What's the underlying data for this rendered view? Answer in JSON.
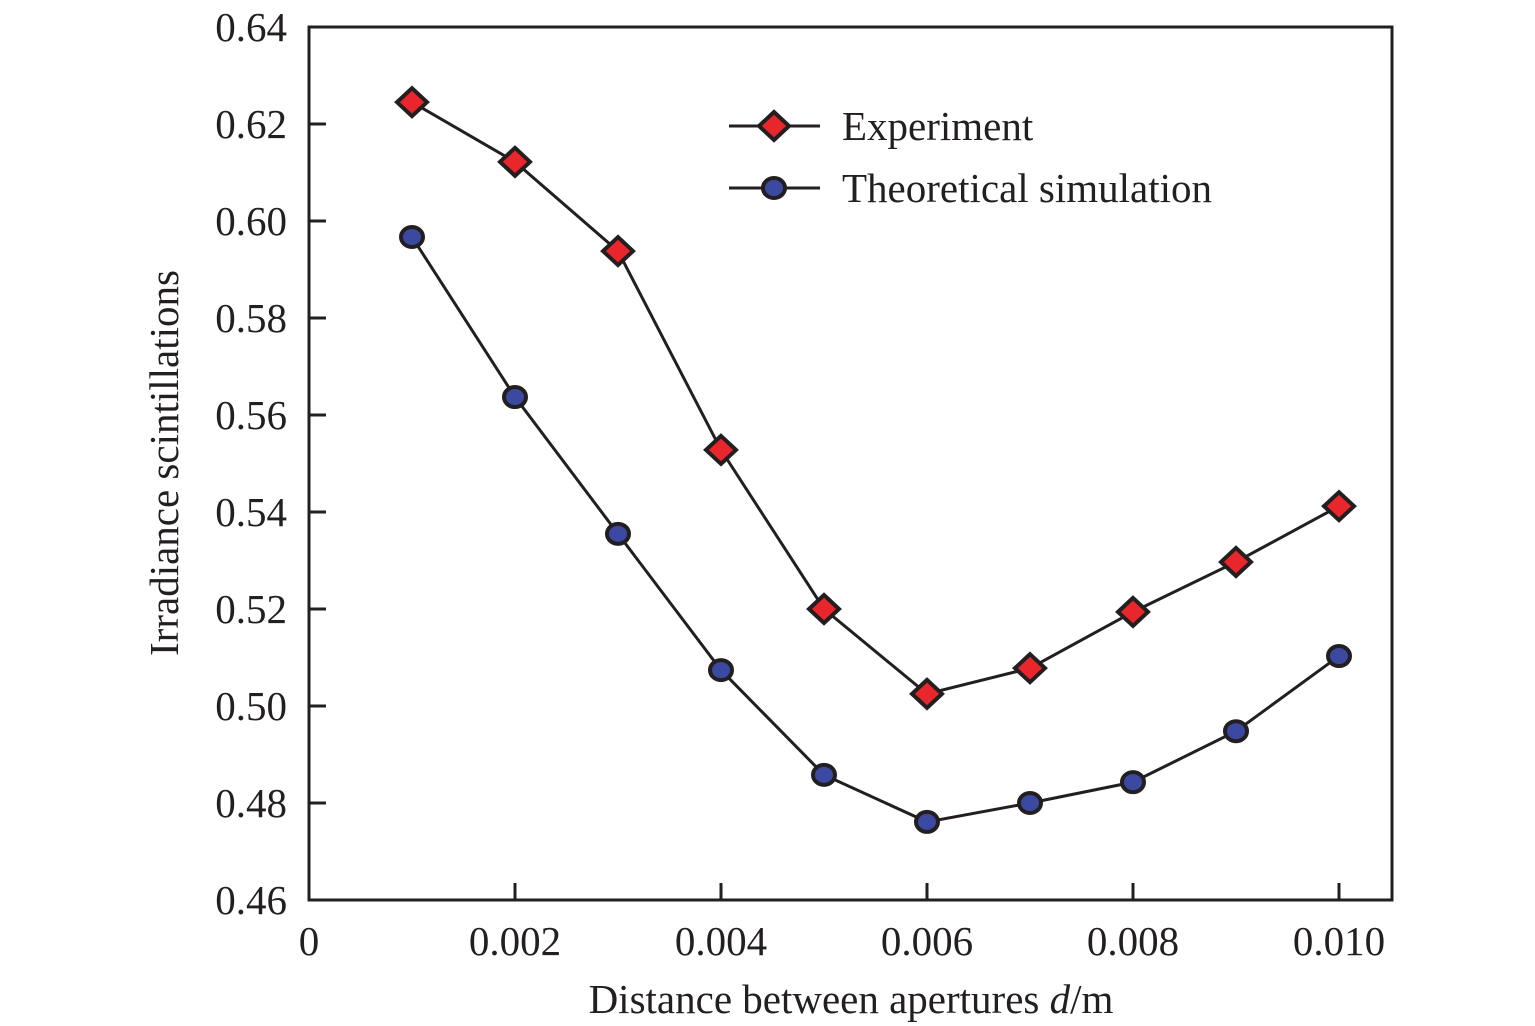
{
  "chart_data": {
    "type": "line",
    "title": "",
    "xlabel_prefix": "Distance between apertures ",
    "xlabel_var": "d",
    "xlabel_suffix": "/m",
    "ylabel": "Irradiance scintillations",
    "xlim": [
      0,
      0.0105
    ],
    "ylim": [
      0.46,
      0.64
    ],
    "xticks": [
      0,
      0.002,
      0.004,
      0.006,
      0.008,
      0.01
    ],
    "xtick_labels": [
      "0",
      "0.002",
      "0.004",
      "0.006",
      "0.008",
      "0.010"
    ],
    "yticks": [
      0.46,
      0.48,
      0.5,
      0.52,
      0.54,
      0.56,
      0.58,
      0.6,
      0.62,
      0.64
    ],
    "ytick_labels": [
      "0.46",
      "0.48",
      "0.50",
      "0.52",
      "0.54",
      "0.56",
      "0.58",
      "0.60",
      "0.62",
      "0.64"
    ],
    "grid": false,
    "legend_position": "top-right",
    "x": [
      0.001,
      0.002,
      0.003,
      0.004,
      0.005,
      0.006,
      0.007,
      0.008,
      0.009,
      0.01
    ],
    "series": [
      {
        "name": "Experiment",
        "marker": "diamond",
        "color": "#e8262b",
        "values": [
          0.6245,
          0.6122,
          0.5938,
          0.5528,
          0.52,
          0.5025,
          0.5078,
          0.5194,
          0.5297,
          0.5412
        ]
      },
      {
        "name": "Theoretical simulation",
        "marker": "circle",
        "color": "#3b4aa0",
        "values": [
          0.5967,
          0.5637,
          0.5355,
          0.5074,
          0.4858,
          0.4761,
          0.48,
          0.4843,
          0.4948,
          0.5103
        ]
      }
    ]
  }
}
